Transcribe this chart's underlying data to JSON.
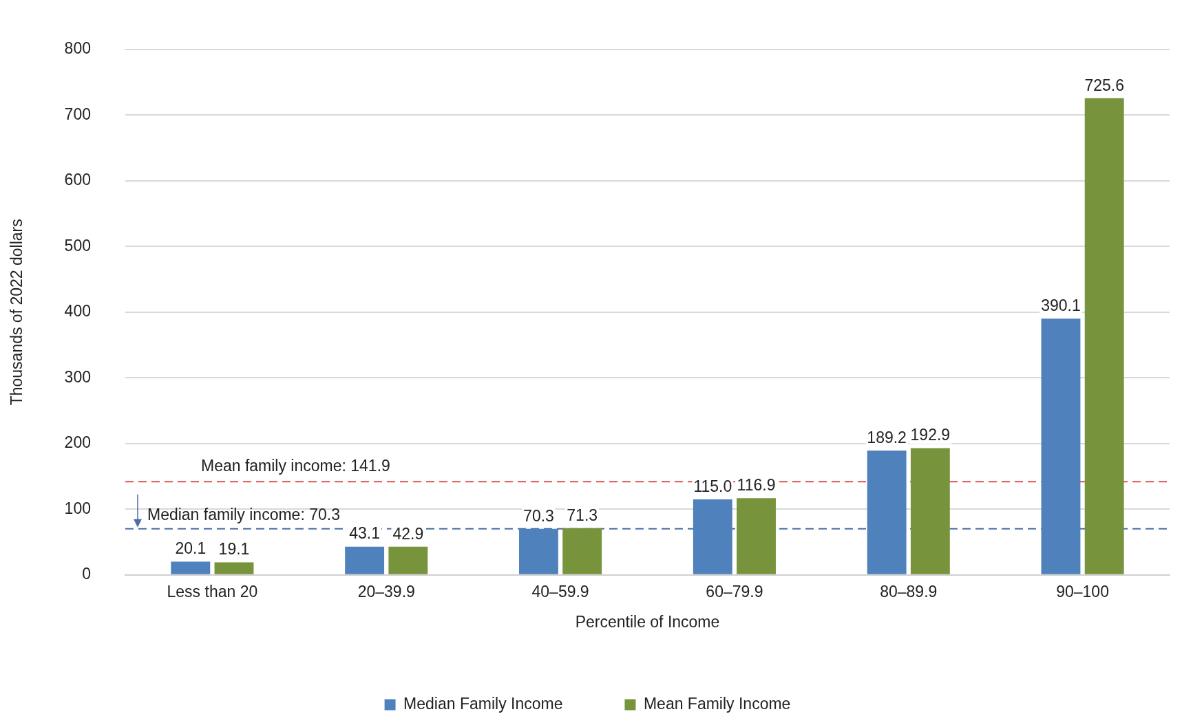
{
  "chart_data": {
    "type": "bar",
    "xlabel": "Percentile of Income",
    "ylabel": "Thousands of 2022 dollars",
    "categories": [
      "Less than 20",
      "20–39.9",
      "40–59.9",
      "60–79.9",
      "80–89.9",
      "90–100"
    ],
    "series": [
      {
        "name": "Median Family Income",
        "color": "#4f81bd",
        "values": [
          20.1,
          43.1,
          70.3,
          115.0,
          189.2,
          390.1
        ],
        "value_labels": [
          "20.1",
          "43.1",
          "70.3",
          "115.0",
          "189.2",
          "390.1"
        ]
      },
      {
        "name": "Mean Family Income",
        "color": "#77933c",
        "values": [
          19.1,
          42.9,
          71.3,
          116.9,
          192.9,
          725.6
        ],
        "value_labels": [
          "19.1",
          "42.9",
          "71.3",
          "116.9",
          "192.9",
          "725.6"
        ]
      }
    ],
    "ylim": [
      0,
      800
    ],
    "yticks": [
      0,
      100,
      200,
      300,
      400,
      500,
      600,
      700,
      800
    ],
    "grid": "y",
    "legend": "bottom",
    "ref_lines": [
      {
        "axis": "y",
        "value": 70.3,
        "label": "Median family income: 70.3",
        "color": "#4a6fa5",
        "line_style": "dashed"
      },
      {
        "axis": "y",
        "value": 141.9,
        "label": "Mean family income: 141.9",
        "color": "#d9534f",
        "line_style": "dashed"
      }
    ]
  }
}
